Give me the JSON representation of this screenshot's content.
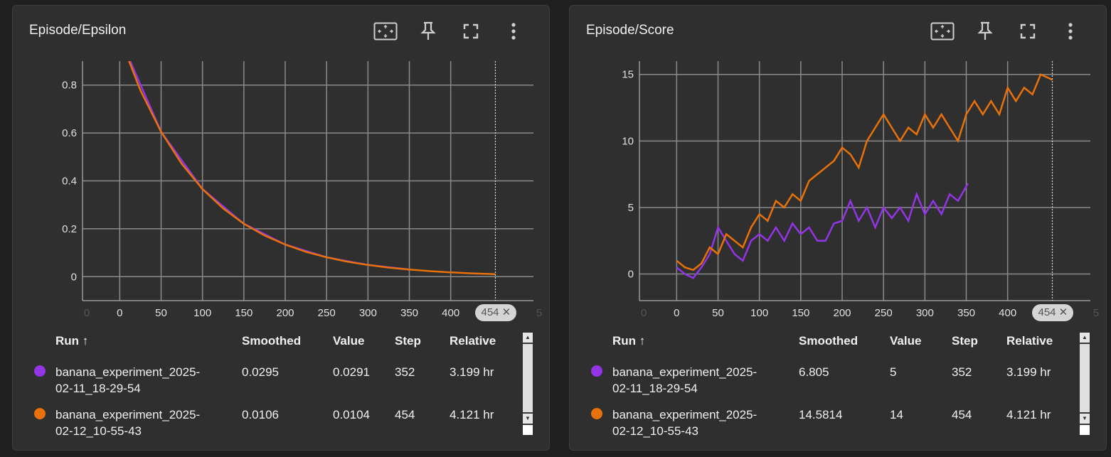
{
  "cards": [
    {
      "title": "Episode/Epsilon",
      "tools": [
        "fit-domain-icon",
        "pin-icon",
        "fullscreen-icon",
        "more-vert-icon"
      ],
      "table": {
        "headers": {
          "run": "Run ↑",
          "smoothed": "Smoothed",
          "value": "Value",
          "step": "Step",
          "relative": "Relative"
        },
        "rows": [
          {
            "color": "#9334e6",
            "name1": "banana_experiment_2025-",
            "name2": "02-11_18-29-54",
            "smoothed": "0.0295",
            "value": "0.0291",
            "step": "352",
            "relative": "3.199 hr"
          },
          {
            "color": "#e8710a",
            "name1": "banana_experiment_2025-",
            "name2": "02-12_10-55-43",
            "smoothed": "0.0106",
            "value": "0.0104",
            "step": "454",
            "relative": "4.121 hr"
          }
        ]
      }
    },
    {
      "title": "Episode/Score",
      "tools": [
        "fit-domain-icon",
        "pin-icon",
        "fullscreen-icon",
        "more-vert-icon"
      ],
      "table": {
        "headers": {
          "run": "Run ↑",
          "smoothed": "Smoothed",
          "value": "Value",
          "step": "Step",
          "relative": "Relative"
        },
        "rows": [
          {
            "color": "#9334e6",
            "name1": "banana_experiment_2025-",
            "name2": "02-11_18-29-54",
            "smoothed": "6.805",
            "value": "5",
            "step": "352",
            "relative": "3.199 hr"
          },
          {
            "color": "#e8710a",
            "name1": "banana_experiment_2025-",
            "name2": "02-12_10-55-43",
            "smoothed": "14.5814",
            "value": "14",
            "step": "454",
            "relative": "4.121 hr"
          }
        ]
      }
    }
  ],
  "chart_data": [
    {
      "type": "line",
      "title": "Episode/Epsilon",
      "xlim": [
        -45,
        500
      ],
      "ylim": [
        -0.1,
        0.9
      ],
      "x_ticks": [
        0,
        50,
        100,
        150,
        200,
        250,
        300,
        350,
        400
      ],
      "x_ticks_dim": [
        "0",
        "5"
      ],
      "y_ticks": [
        0,
        0.2,
        0.4,
        0.6,
        0.8
      ],
      "y_tick_labels": [
        "0",
        "0.2",
        "0.4",
        "0.6",
        "0.8"
      ],
      "hover_step": "454",
      "grid": true,
      "series": [
        {
          "name": "banana_experiment_2025-02-11_18-29-54",
          "color": "#9334e6",
          "points": [
            [
              0,
              1.0
            ],
            [
              50,
              0.605
            ],
            [
              100,
              0.366
            ],
            [
              150,
              0.221
            ],
            [
              200,
              0.134
            ],
            [
              250,
              0.081
            ],
            [
              300,
              0.049
            ],
            [
              352,
              0.0291
            ]
          ]
        },
        {
          "name": "banana_experiment_2025-02-12_10-55-43",
          "color": "#e8710a",
          "points": [
            [
              0,
              1.0
            ],
            [
              25,
              0.778
            ],
            [
              50,
              0.605
            ],
            [
              75,
              0.471
            ],
            [
              100,
              0.366
            ],
            [
              125,
              0.285
            ],
            [
              150,
              0.221
            ],
            [
              175,
              0.172
            ],
            [
              200,
              0.134
            ],
            [
              225,
              0.104
            ],
            [
              250,
              0.081
            ],
            [
              275,
              0.063
            ],
            [
              300,
              0.049
            ],
            [
              325,
              0.038
            ],
            [
              350,
              0.03
            ],
            [
              375,
              0.023
            ],
            [
              400,
              0.018
            ],
            [
              425,
              0.014
            ],
            [
              454,
              0.0104
            ]
          ]
        }
      ]
    },
    {
      "type": "line",
      "title": "Episode/Score",
      "xlim": [
        -45,
        500
      ],
      "ylim": [
        -2,
        16
      ],
      "x_ticks": [
        0,
        50,
        100,
        150,
        200,
        250,
        300,
        350,
        400
      ],
      "x_ticks_dim": [
        "0",
        "5"
      ],
      "y_ticks": [
        0,
        5,
        10,
        15
      ],
      "y_tick_labels": [
        "0",
        "5",
        "10",
        "15"
      ],
      "hover_step": "454",
      "grid": true,
      "series": [
        {
          "name": "banana_experiment_2025-02-11_18-29-54",
          "color": "#9334e6",
          "points": [
            [
              0,
              0.5
            ],
            [
              10,
              0
            ],
            [
              20,
              -0.3
            ],
            [
              30,
              0.5
            ],
            [
              40,
              1.5
            ],
            [
              50,
              3.5
            ],
            [
              60,
              2.5
            ],
            [
              70,
              1.5
            ],
            [
              80,
              1
            ],
            [
              90,
              2.5
            ],
            [
              100,
              3
            ],
            [
              110,
              2.5
            ],
            [
              120,
              3.5
            ],
            [
              130,
              2.5
            ],
            [
              140,
              3.8
            ],
            [
              150,
              3
            ],
            [
              160,
              3.5
            ],
            [
              170,
              2.5
            ],
            [
              180,
              2.5
            ],
            [
              190,
              3.8
            ],
            [
              200,
              4
            ],
            [
              210,
              5.5
            ],
            [
              220,
              4
            ],
            [
              230,
              5
            ],
            [
              240,
              3.5
            ],
            [
              250,
              5
            ],
            [
              260,
              4.2
            ],
            [
              270,
              5
            ],
            [
              280,
              4
            ],
            [
              290,
              6
            ],
            [
              300,
              4.5
            ],
            [
              310,
              5.5
            ],
            [
              320,
              4.5
            ],
            [
              330,
              6
            ],
            [
              340,
              5.5
            ],
            [
              352,
              6.8
            ]
          ]
        },
        {
          "name": "banana_experiment_2025-02-12_10-55-43",
          "color": "#e8710a",
          "points": [
            [
              0,
              1
            ],
            [
              10,
              0.5
            ],
            [
              20,
              0.3
            ],
            [
              30,
              0.8
            ],
            [
              40,
              2
            ],
            [
              50,
              1.5
            ],
            [
              60,
              3
            ],
            [
              70,
              2.5
            ],
            [
              80,
              2
            ],
            [
              90,
              3.5
            ],
            [
              100,
              4.5
            ],
            [
              110,
              4
            ],
            [
              120,
              5.5
            ],
            [
              130,
              5
            ],
            [
              140,
              6
            ],
            [
              150,
              5.5
            ],
            [
              160,
              7
            ],
            [
              170,
              7.5
            ],
            [
              180,
              8
            ],
            [
              190,
              8.5
            ],
            [
              200,
              9.5
            ],
            [
              210,
              9
            ],
            [
              220,
              8
            ],
            [
              230,
              10
            ],
            [
              240,
              11
            ],
            [
              250,
              12
            ],
            [
              260,
              11
            ],
            [
              270,
              10
            ],
            [
              280,
              11
            ],
            [
              290,
              10.5
            ],
            [
              300,
              12
            ],
            [
              310,
              11
            ],
            [
              320,
              12
            ],
            [
              330,
              11
            ],
            [
              340,
              10
            ],
            [
              350,
              12
            ],
            [
              360,
              13
            ],
            [
              370,
              12
            ],
            [
              380,
              13
            ],
            [
              390,
              12
            ],
            [
              400,
              14
            ],
            [
              410,
              13
            ],
            [
              420,
              14
            ],
            [
              430,
              13.5
            ],
            [
              440,
              15
            ],
            [
              454,
              14.6
            ]
          ]
        }
      ]
    }
  ]
}
